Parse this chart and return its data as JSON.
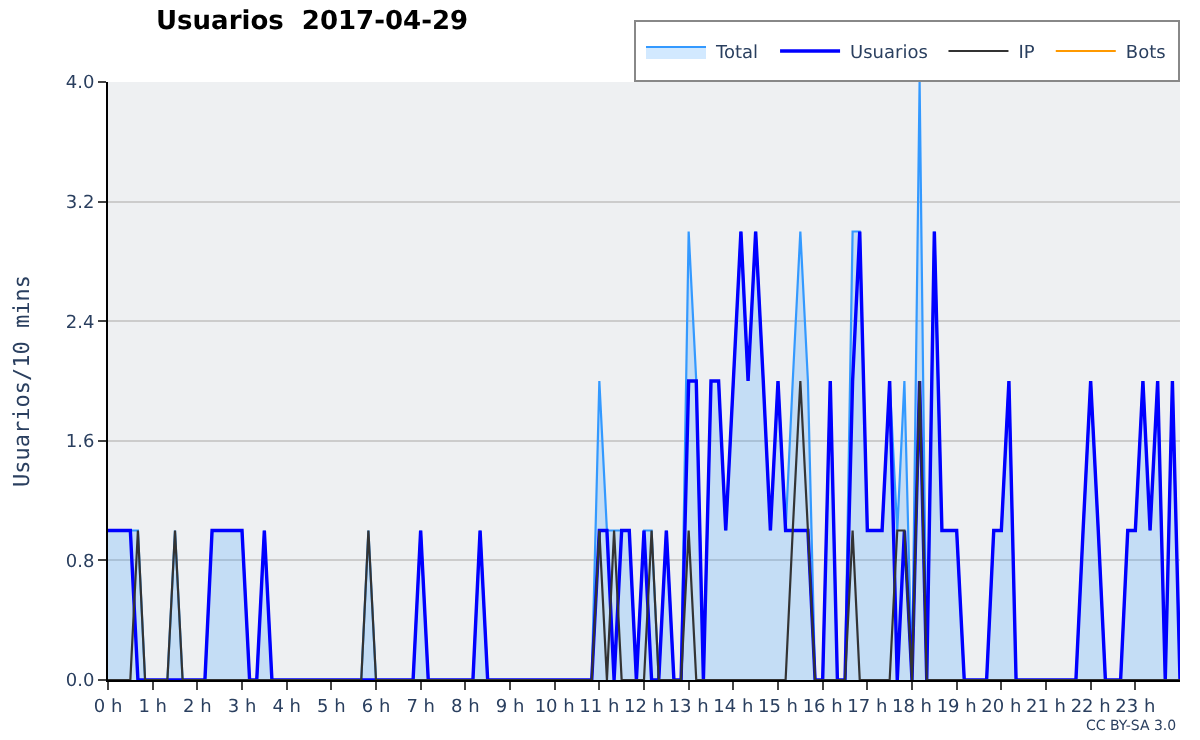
{
  "chart_data": {
    "type": "line",
    "title": "Usuarios  2017-04-29",
    "ylabel": "Usuarios/10 mins",
    "x": [
      0,
      0.17,
      0.33,
      0.5,
      0.67,
      0.83,
      1,
      1.17,
      1.33,
      1.5,
      1.67,
      1.83,
      2,
      2.17,
      2.33,
      2.5,
      2.67,
      2.83,
      3,
      3.17,
      3.33,
      3.5,
      3.67,
      3.83,
      4,
      4.17,
      4.33,
      4.5,
      4.67,
      4.83,
      5,
      5.17,
      5.33,
      5.5,
      5.67,
      5.83,
      6,
      6.17,
      6.33,
      6.5,
      6.67,
      6.83,
      7,
      7.17,
      7.33,
      7.5,
      7.67,
      7.83,
      8,
      8.17,
      8.33,
      8.5,
      8.67,
      8.83,
      9,
      9.17,
      9.33,
      9.5,
      9.67,
      9.83,
      10,
      10.17,
      10.33,
      10.5,
      10.67,
      10.83,
      11,
      11.17,
      11.33,
      11.5,
      11.67,
      11.83,
      12,
      12.17,
      12.33,
      12.5,
      12.67,
      12.83,
      13,
      13.17,
      13.33,
      13.5,
      13.67,
      13.83,
      14,
      14.17,
      14.33,
      14.5,
      14.67,
      14.83,
      15,
      15.17,
      15.33,
      15.5,
      15.67,
      15.83,
      16,
      16.17,
      16.33,
      16.5,
      16.67,
      16.83,
      17,
      17.17,
      17.33,
      17.5,
      17.67,
      17.83,
      18,
      18.17,
      18.33,
      18.5,
      18.67,
      18.83,
      19,
      19.17,
      19.33,
      19.5,
      19.67,
      19.83,
      20,
      20.17,
      20.33,
      20.5,
      20.67,
      20.83,
      21,
      21.17,
      21.33,
      21.5,
      21.67,
      21.83,
      22,
      22.17,
      22.33,
      22.5,
      22.67,
      22.83,
      23,
      23.17,
      23.33,
      23.5,
      23.67,
      23.83,
      24
    ],
    "series": [
      {
        "name": "Total",
        "type": "area",
        "color": "#3399ff",
        "values": [
          1,
          1,
          1,
          1,
          1,
          0,
          0,
          0,
          0,
          1,
          0,
          0,
          0,
          0,
          1,
          1,
          1,
          1,
          1,
          0,
          0,
          1,
          0,
          0,
          0,
          0,
          0,
          0,
          0,
          0,
          0,
          0,
          0,
          0,
          0,
          1,
          0,
          0,
          0,
          0,
          0,
          0,
          1,
          0,
          0,
          0,
          0,
          0,
          0,
          0,
          1,
          0,
          0,
          0,
          0,
          0,
          0,
          0,
          0,
          0,
          0,
          0,
          0,
          0,
          0,
          0,
          2,
          1,
          1,
          1,
          1,
          0,
          1,
          1,
          0,
          1,
          0,
          0,
          3,
          2,
          0,
          2,
          2,
          1,
          2,
          3,
          2,
          3,
          2,
          1,
          2,
          1,
          2,
          3,
          2,
          0,
          0,
          2,
          0,
          0,
          3,
          3,
          1,
          1,
          1,
          2,
          1,
          2,
          0,
          4,
          0,
          3,
          1,
          1,
          1,
          0,
          0,
          0,
          0,
          1,
          1,
          2,
          0,
          0,
          0,
          0,
          0,
          0,
          0,
          0,
          0,
          1,
          2,
          1,
          0,
          0,
          0,
          1,
          1,
          2,
          1,
          2,
          0,
          2,
          0
        ]
      },
      {
        "name": "Usuarios",
        "color": "#0000ff",
        "values": [
          1,
          1,
          1,
          1,
          0,
          0,
          0,
          0,
          0,
          0,
          0,
          0,
          0,
          0,
          1,
          1,
          1,
          1,
          1,
          0,
          0,
          1,
          0,
          0,
          0,
          0,
          0,
          0,
          0,
          0,
          0,
          0,
          0,
          0,
          0,
          0,
          0,
          0,
          0,
          0,
          0,
          0,
          1,
          0,
          0,
          0,
          0,
          0,
          0,
          0,
          1,
          0,
          0,
          0,
          0,
          0,
          0,
          0,
          0,
          0,
          0,
          0,
          0,
          0,
          0,
          0,
          1,
          1,
          0,
          1,
          1,
          0,
          1,
          0,
          0,
          1,
          0,
          0,
          2,
          2,
          0,
          2,
          2,
          1,
          2,
          3,
          2,
          3,
          2,
          1,
          2,
          1,
          1,
          1,
          1,
          0,
          0,
          2,
          0,
          0,
          2,
          3,
          1,
          1,
          1,
          2,
          0,
          1,
          0,
          2,
          0,
          3,
          1,
          1,
          1,
          0,
          0,
          0,
          0,
          1,
          1,
          2,
          0,
          0,
          0,
          0,
          0,
          0,
          0,
          0,
          0,
          1,
          2,
          1,
          0,
          0,
          0,
          1,
          1,
          2,
          1,
          2,
          0,
          2,
          0
        ]
      },
      {
        "name": "IP",
        "color": "#333333",
        "values": [
          0,
          0,
          0,
          0,
          1,
          0,
          0,
          0,
          0,
          1,
          0,
          0,
          0,
          0,
          0,
          0,
          0,
          0,
          0,
          0,
          0,
          0,
          0,
          0,
          0,
          0,
          0,
          0,
          0,
          0,
          0,
          0,
          0,
          0,
          0,
          1,
          0,
          0,
          0,
          0,
          0,
          0,
          0,
          0,
          0,
          0,
          0,
          0,
          0,
          0,
          0,
          0,
          0,
          0,
          0,
          0,
          0,
          0,
          0,
          0,
          0,
          0,
          0,
          0,
          0,
          0,
          1,
          0,
          1,
          0,
          0,
          0,
          0,
          1,
          0,
          0,
          0,
          0,
          1,
          0,
          0,
          0,
          0,
          0,
          0,
          0,
          0,
          0,
          0,
          0,
          0,
          0,
          1,
          2,
          1,
          0,
          0,
          0,
          0,
          0,
          1,
          0,
          0,
          0,
          0,
          0,
          1,
          1,
          0,
          2,
          0,
          0,
          0,
          0,
          0,
          0,
          0,
          0,
          0,
          0,
          0,
          0,
          0,
          0,
          0,
          0,
          0,
          0,
          0,
          0,
          0,
          0,
          0,
          0,
          0,
          0,
          0,
          0,
          0,
          0,
          0,
          0,
          0,
          0,
          0
        ]
      },
      {
        "name": "Bots",
        "color": "#ff9900",
        "values": [
          null,
          null,
          null,
          null,
          null,
          null,
          null,
          null,
          null,
          null,
          null,
          null,
          null,
          null,
          null,
          null,
          null,
          null,
          null,
          null,
          null,
          null,
          null,
          null,
          null,
          null,
          null,
          null,
          null,
          null,
          null,
          null,
          null,
          null,
          null,
          null,
          null,
          null,
          null,
          null,
          null,
          null,
          null,
          null,
          null,
          null,
          null,
          null,
          null,
          null,
          null,
          null,
          null,
          null,
          null,
          null,
          null,
          null,
          null,
          null,
          null,
          null,
          null,
          null,
          null,
          null,
          null,
          null,
          null,
          null,
          null,
          null,
          null,
          null,
          null,
          null,
          null,
          null,
          null,
          null,
          null,
          null,
          null,
          null,
          null,
          null,
          null,
          null,
          null,
          null,
          null,
          null,
          null,
          null,
          null,
          null,
          null,
          null,
          null,
          null,
          null,
          null,
          null,
          null,
          null,
          null,
          null,
          null,
          null,
          null,
          null,
          null,
          null,
          null,
          null,
          null,
          null,
          null,
          null,
          null,
          null,
          null,
          null,
          null,
          null,
          null,
          null,
          null,
          null,
          null,
          null,
          null,
          null,
          null,
          null,
          null,
          null,
          null,
          null,
          null,
          null,
          null,
          null,
          null,
          null
        ]
      }
    ],
    "xlim": [
      0,
      24
    ],
    "xticks": [
      {
        "value": 0,
        "label": "0 h"
      },
      {
        "value": 1,
        "label": "1 h"
      },
      {
        "value": 2,
        "label": "2 h"
      },
      {
        "value": 3,
        "label": "3 h"
      },
      {
        "value": 4,
        "label": "4 h"
      },
      {
        "value": 5,
        "label": "5 h"
      },
      {
        "value": 6,
        "label": "6 h"
      },
      {
        "value": 7,
        "label": "7 h"
      },
      {
        "value": 8,
        "label": "8 h"
      },
      {
        "value": 9,
        "label": "9 h"
      },
      {
        "value": 10,
        "label": "10 h"
      },
      {
        "value": 11,
        "label": "11 h"
      },
      {
        "value": 12,
        "label": "12 h"
      },
      {
        "value": 13,
        "label": "13 h"
      },
      {
        "value": 14,
        "label": "14 h"
      },
      {
        "value": 15,
        "label": "15 h"
      },
      {
        "value": 16,
        "label": "16 h"
      },
      {
        "value": 17,
        "label": "17 h"
      },
      {
        "value": 18,
        "label": "18 h"
      },
      {
        "value": 19,
        "label": "19 h"
      },
      {
        "value": 20,
        "label": "20 h"
      },
      {
        "value": 21,
        "label": "21 h"
      },
      {
        "value": 22,
        "label": "22 h"
      },
      {
        "value": 23,
        "label": "23 h"
      }
    ],
    "ylim": [
      0,
      4
    ],
    "yticks": [
      {
        "value": 0,
        "label": "0.0"
      },
      0.8,
      1.6,
      2.4,
      3.2,
      {
        "value": 4,
        "label": "4.0"
      }
    ],
    "grid": "y",
    "legend": "top right",
    "annotations": [
      "CC BY-SA 3.0"
    ]
  }
}
